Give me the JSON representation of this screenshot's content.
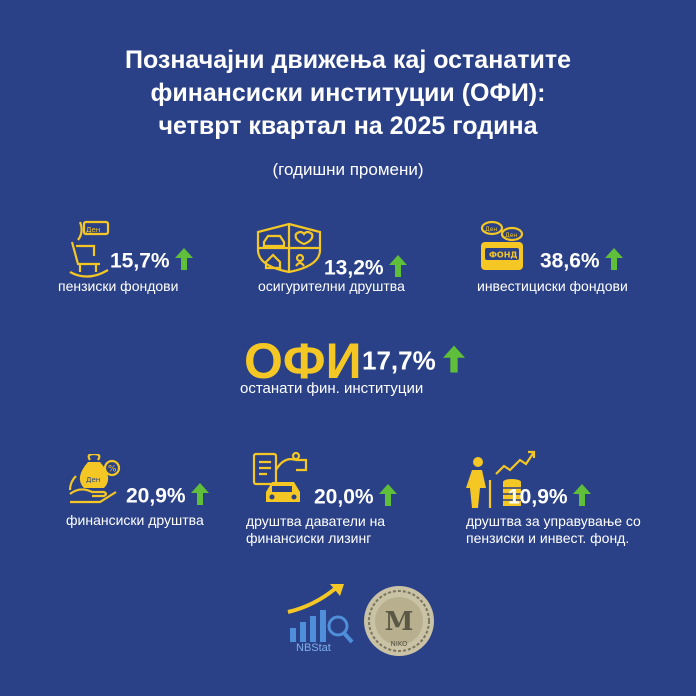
{
  "header": {
    "title_line1": "Позначајни движења кај останатите",
    "title_line2": "финансиски институции (ОФИ):",
    "title_line3": "четврт квартал на 2025 година",
    "subtitle": "(годишни промени)"
  },
  "colors": {
    "background": "#2b4187",
    "icon_gold": "#f4c724",
    "arrow_green": "#5fbf3a",
    "text": "#ffffff"
  },
  "items": {
    "pension": {
      "value": "15,7%",
      "label": "пензиски фондови",
      "icon": "rocking-chair-money-icon"
    },
    "insurance": {
      "value": "13,2%",
      "label": "осигурителни друштва",
      "icon": "insurance-shield-icon"
    },
    "investment": {
      "value": "38,6%",
      "label": "инвестициски фондови",
      "icon": "fund-coins-icon"
    },
    "finance": {
      "value": "20,9%",
      "label": "финансиски друштва",
      "icon": "money-bag-hand-icon"
    },
    "leasing": {
      "value": "20,0%",
      "label_line1": "друштва даватели на",
      "label_line2": "финансиски лизинг",
      "icon": "car-leasing-icon"
    },
    "management": {
      "value": "10,9%",
      "label_line1": "друштва за управување со",
      "label_line2": "пензиски и инвест. фонд.",
      "icon": "elder-coins-growth-icon"
    }
  },
  "central": {
    "acronym": "ОФИ",
    "value": "17,7%",
    "label": "останати фин. институции"
  },
  "footer": {
    "nbstat_label": "NBStat",
    "seal_text": "NIKO"
  }
}
